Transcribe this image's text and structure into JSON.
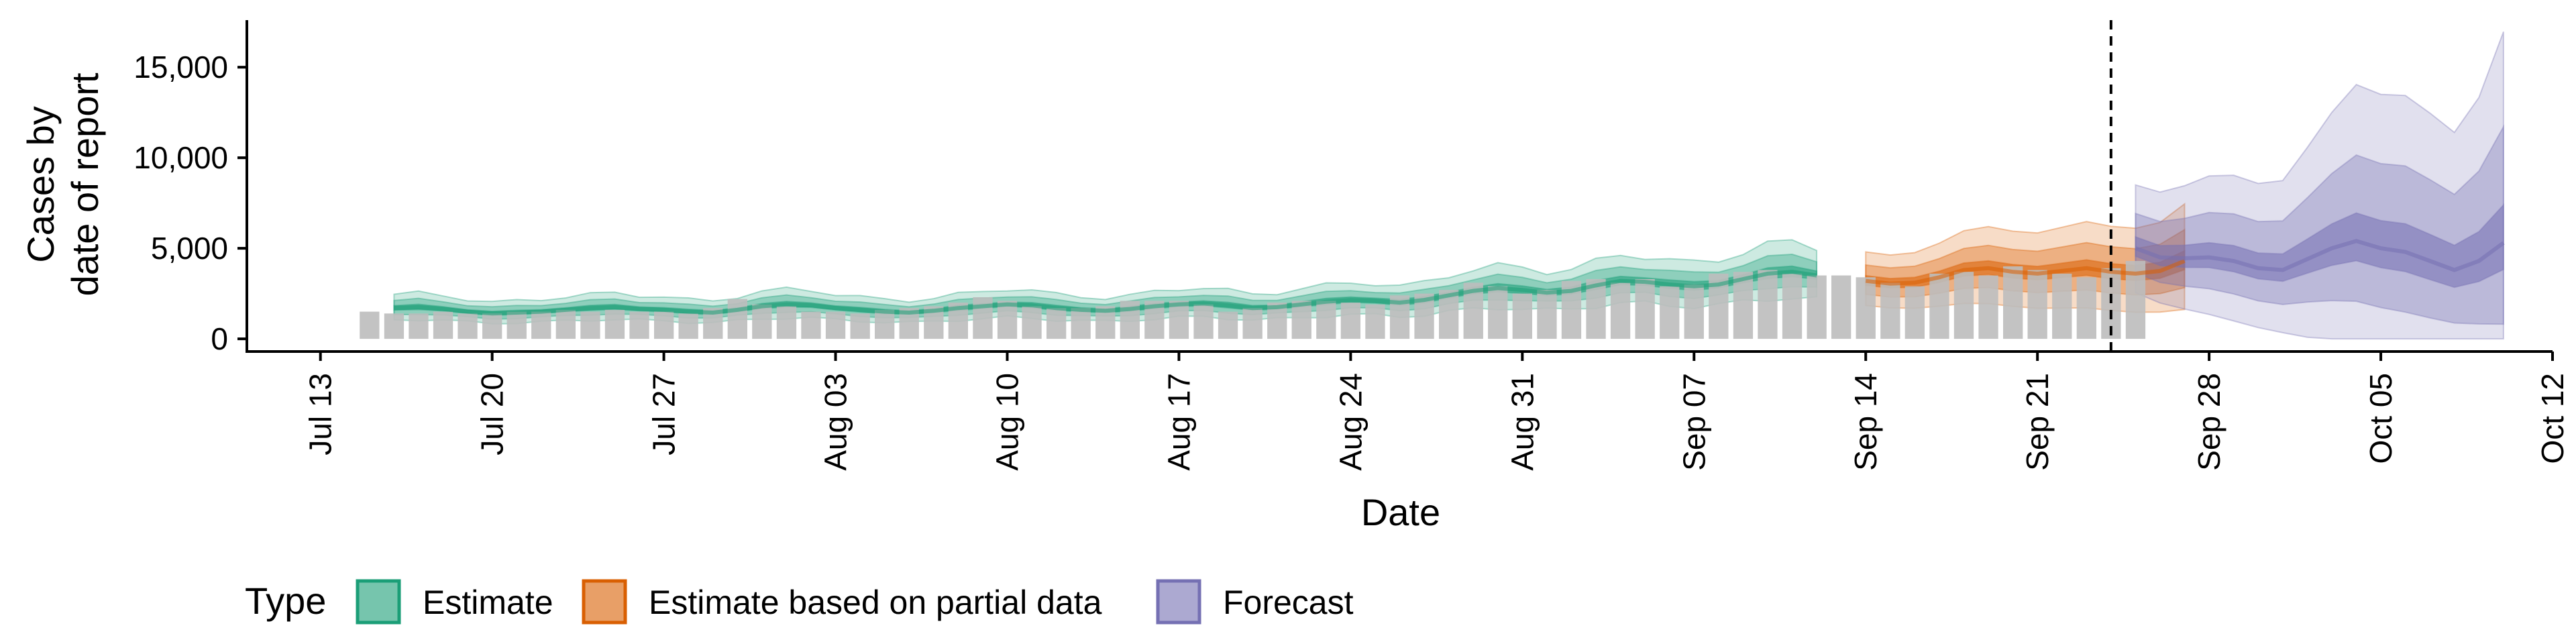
{
  "chart_data": {
    "type": "area",
    "title": "",
    "xlabel": "Date",
    "ylabel_lines": [
      "Cases by",
      "date of report"
    ],
    "ylim": [
      -700,
      17600
    ],
    "y_ticks": [
      0,
      5000,
      10000,
      15000
    ],
    "y_tick_labels": [
      "0",
      "5,000",
      "10,000",
      "15,000"
    ],
    "x_start_date": "2020-07-10",
    "x_end_date": "2020-10-12",
    "x_ticks": [
      "2020-07-13",
      "2020-07-20",
      "2020-07-27",
      "2020-08-03",
      "2020-08-10",
      "2020-08-17",
      "2020-08-24",
      "2020-08-31",
      "2020-09-07",
      "2020-09-14",
      "2020-09-21",
      "2020-09-28",
      "2020-10-05",
      "2020-10-12"
    ],
    "x_tick_labels": [
      "Jul 13",
      "Jul 20",
      "Jul 27",
      "Aug 03",
      "Aug 10",
      "Aug 17",
      "Aug 24",
      "Aug 31",
      "Sep 07",
      "Sep 14",
      "Sep 21",
      "Sep 28",
      "Oct 05",
      "Oct 12"
    ],
    "grid": false,
    "vline_date": "2020-09-24",
    "legend": {
      "position": "bottom",
      "title": "Type",
      "items": [
        {
          "label": "Estimate",
          "color": "#1b9e77"
        },
        {
          "label": "Estimate based on partial data",
          "color": "#d95f02"
        },
        {
          "label": "Forecast",
          "color": "#7570b3"
        }
      ]
    },
    "reported_cases": {
      "color": "#bdbdbd",
      "start_date": "2020-07-15",
      "values": [
        1500,
        1400,
        1400,
        1500,
        1400,
        1400,
        1500,
        1500,
        1600,
        1500,
        1600,
        1500,
        1500,
        1400,
        1700,
        2200,
        1900,
        1800,
        1500,
        1500,
        1400,
        1600,
        1700,
        1800,
        2000,
        2300,
        2100,
        1800,
        1700,
        1700,
        1800,
        2100,
        2100,
        2100,
        1900,
        1500,
        1700,
        2000,
        2100,
        2100,
        2000,
        1900,
        2400,
        2500,
        2700,
        3100,
        2900,
        2500,
        2700,
        3200,
        3300,
        3100,
        3300,
        2900,
        3000,
        3600,
        3700,
        3800,
        3600,
        3500,
        3500,
        3400,
        3100,
        2900,
        3600,
        3700,
        3500,
        4000,
        3800,
        3600,
        3400,
        3900,
        4300
      ]
    },
    "series": [
      {
        "name": "Estimate",
        "color": "#1b9e77",
        "start_date": "2020-07-16",
        "median": [
          1700,
          1750,
          1650,
          1500,
          1400,
          1450,
          1500,
          1600,
          1700,
          1750,
          1650,
          1600,
          1500,
          1450,
          1600,
          1800,
          1900,
          1850,
          1700,
          1600,
          1500,
          1450,
          1550,
          1700,
          1800,
          1900,
          1850,
          1700,
          1600,
          1550,
          1650,
          1800,
          1900,
          1950,
          1850,
          1700,
          1750,
          1900,
          2050,
          2150,
          2100,
          2000,
          2150,
          2400,
          2650,
          2800,
          2700,
          2550,
          2650,
          2950,
          3200,
          3150,
          3000,
          2900,
          3000,
          3300,
          3600,
          3700,
          3500
        ]
      },
      {
        "name": "Estimate based on partial data",
        "color": "#d95f02",
        "start_date": "2020-09-14",
        "median": [
          3200,
          3050,
          3100,
          3400,
          3800,
          3900,
          3700,
          3600,
          3750,
          3900,
          3700,
          3600,
          3750,
          4300
        ]
      },
      {
        "name": "Forecast",
        "color": "#7570b3",
        "start_date": "2020-09-25",
        "median": [
          5000,
          4500,
          4450,
          4500,
          4300,
          3900,
          3800,
          4400,
          5000,
          5400,
          5000,
          4800,
          4300,
          3800,
          4300,
          5300
        ]
      }
    ]
  }
}
